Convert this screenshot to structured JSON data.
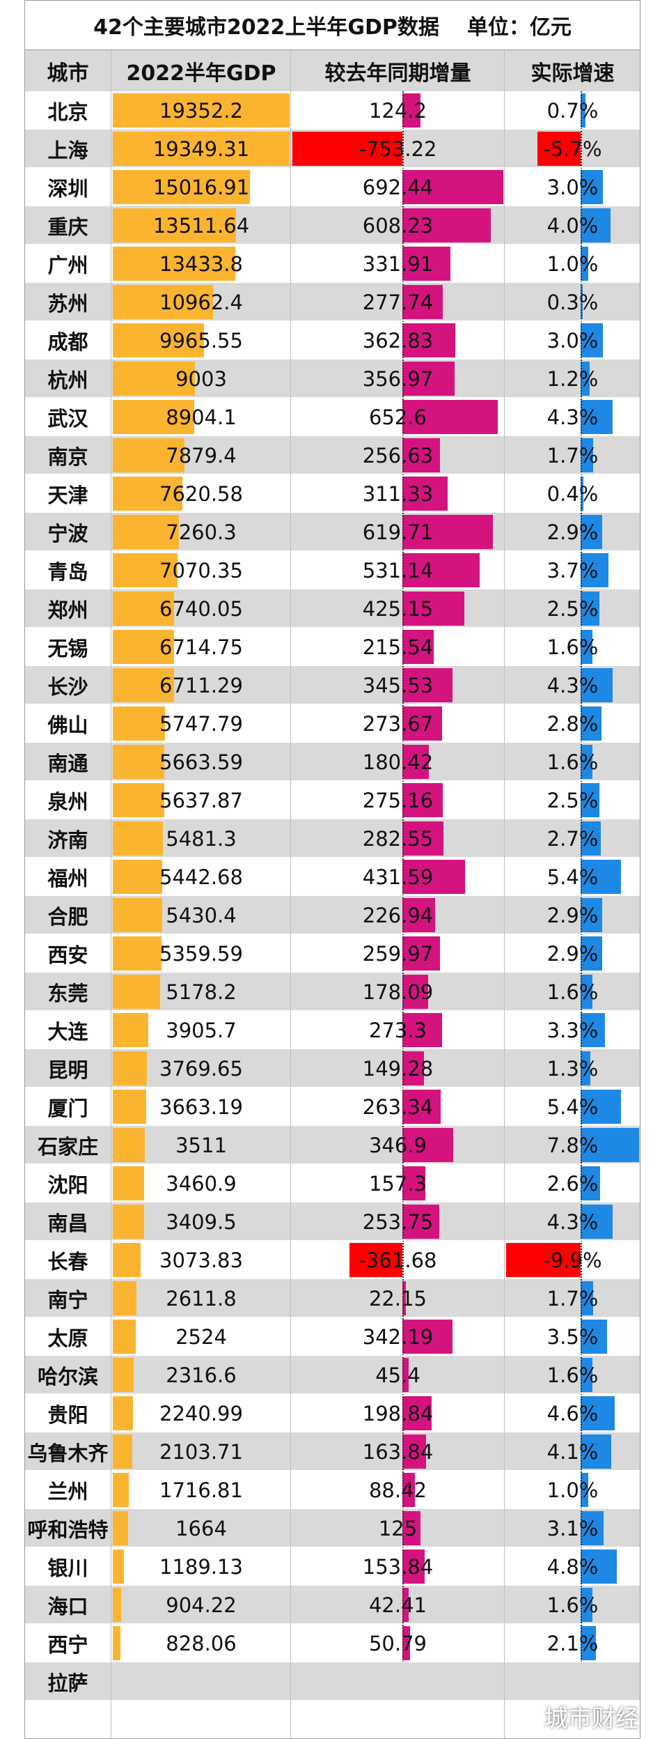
{
  "header": {
    "title": "42个主要城市2022上半年GDP数据",
    "unit": "单位：亿元"
  },
  "columns": [
    "城市",
    "2022半年GDP",
    "较去年同期增量",
    "实际增速"
  ],
  "rows": [
    {
      "city": "北京",
      "gdp": 19352.2,
      "increase": 124.2,
      "growth": 0.7,
      "growth_label": "0.7%"
    },
    {
      "city": "上海",
      "gdp": 19349.31,
      "increase": -753.22,
      "growth": -5.7,
      "growth_label": "-5.7%"
    },
    {
      "city": "深圳",
      "gdp": 15016.91,
      "increase": 692.44,
      "growth": 3.0,
      "growth_label": "3.0%"
    },
    {
      "city": "重庆",
      "gdp": 13511.64,
      "increase": 608.23,
      "growth": 4.0,
      "growth_label": "4.0%"
    },
    {
      "city": "广州",
      "gdp": 13433.8,
      "increase": 331.91,
      "growth": 1.0,
      "growth_label": "1.0%"
    },
    {
      "city": "苏州",
      "gdp": 10962.4,
      "increase": 277.74,
      "growth": 0.3,
      "growth_label": "0.3%"
    },
    {
      "city": "成都",
      "gdp": 9965.55,
      "increase": 362.83,
      "growth": 3.0,
      "growth_label": "3.0%"
    },
    {
      "city": "杭州",
      "gdp": 9003,
      "increase": 356.97,
      "growth": 1.2,
      "growth_label": "1.2%"
    },
    {
      "city": "武汉",
      "gdp": 8904.1,
      "increase": 652.6,
      "growth": 4.3,
      "growth_label": "4.3%"
    },
    {
      "city": "南京",
      "gdp": 7879.4,
      "increase": 256.63,
      "growth": 1.7,
      "growth_label": "1.7%"
    },
    {
      "city": "天津",
      "gdp": 7620.58,
      "increase": 311.33,
      "growth": 0.4,
      "growth_label": "0.4%"
    },
    {
      "city": "宁波",
      "gdp": 7260.3,
      "increase": 619.71,
      "growth": 2.9,
      "growth_label": "2.9%"
    },
    {
      "city": "青岛",
      "gdp": 7070.35,
      "increase": 531.14,
      "growth": 3.7,
      "growth_label": "3.7%"
    },
    {
      "city": "郑州",
      "gdp": 6740.05,
      "increase": 425.15,
      "growth": 2.5,
      "growth_label": "2.5%"
    },
    {
      "city": "无锡",
      "gdp": 6714.75,
      "increase": 215.54,
      "growth": 1.6,
      "growth_label": "1.6%"
    },
    {
      "city": "长沙",
      "gdp": 6711.29,
      "increase": 345.53,
      "growth": 4.3,
      "growth_label": "4.3%"
    },
    {
      "city": "佛山",
      "gdp": 5747.79,
      "increase": 273.67,
      "growth": 2.8,
      "growth_label": "2.8%"
    },
    {
      "city": "南通",
      "gdp": 5663.59,
      "increase": 180.42,
      "growth": 1.6,
      "growth_label": "1.6%"
    },
    {
      "city": "泉州",
      "gdp": 5637.87,
      "increase": 275.16,
      "growth": 2.5,
      "growth_label": "2.5%"
    },
    {
      "city": "济南",
      "gdp": 5481.3,
      "increase": 282.55,
      "growth": 2.7,
      "growth_label": "2.7%"
    },
    {
      "city": "福州",
      "gdp": 5442.68,
      "increase": 431.59,
      "growth": 5.4,
      "growth_label": "5.4%"
    },
    {
      "city": "合肥",
      "gdp": 5430.4,
      "increase": 226.94,
      "growth": 2.9,
      "growth_label": "2.9%"
    },
    {
      "city": "西安",
      "gdp": 5359.59,
      "increase": 259.97,
      "growth": 2.9,
      "growth_label": "2.9%"
    },
    {
      "city": "东莞",
      "gdp": 5178.2,
      "increase": 178.09,
      "growth": 1.6,
      "growth_label": "1.6%"
    },
    {
      "city": "大连",
      "gdp": 3905.7,
      "increase": 273.3,
      "growth": 3.3,
      "growth_label": "3.3%"
    },
    {
      "city": "昆明",
      "gdp": 3769.65,
      "increase": 149.28,
      "growth": 1.3,
      "growth_label": "1.3%"
    },
    {
      "city": "厦门",
      "gdp": 3663.19,
      "increase": 263.34,
      "growth": 5.4,
      "growth_label": "5.4%"
    },
    {
      "city": "石家庄",
      "gdp": 3511,
      "increase": 346.9,
      "growth": 7.8,
      "growth_label": "7.8%"
    },
    {
      "city": "沈阳",
      "gdp": 3460.9,
      "increase": 157.3,
      "growth": 2.6,
      "growth_label": "2.6%"
    },
    {
      "city": "南昌",
      "gdp": 3409.5,
      "increase": 253.75,
      "growth": 4.3,
      "growth_label": "4.3%"
    },
    {
      "city": "长春",
      "gdp": 3073.83,
      "increase": -361.68,
      "growth": -9.9,
      "growth_label": "-9.9%"
    },
    {
      "city": "南宁",
      "gdp": 2611.8,
      "increase": 22.15,
      "growth": 1.7,
      "growth_label": "1.7%"
    },
    {
      "city": "太原",
      "gdp": 2524,
      "increase": 342.19,
      "growth": 3.5,
      "growth_label": "3.5%"
    },
    {
      "city": "哈尔滨",
      "gdp": 2316.6,
      "increase": 45.4,
      "growth": 1.6,
      "growth_label": "1.6%"
    },
    {
      "city": "贵阳",
      "gdp": 2240.99,
      "increase": 198.84,
      "growth": 4.6,
      "growth_label": "4.6%"
    },
    {
      "city": "乌鲁木齐",
      "gdp": 2103.71,
      "increase": 163.84,
      "growth": 4.1,
      "growth_label": "4.1%"
    },
    {
      "city": "兰州",
      "gdp": 1716.81,
      "increase": 88.42,
      "growth": 1.0,
      "growth_label": "1.0%"
    },
    {
      "city": "呼和浩特",
      "gdp": 1664,
      "increase": 125,
      "growth": 3.1,
      "growth_label": "3.1%"
    },
    {
      "city": "银川",
      "gdp": 1189.13,
      "increase": 153.84,
      "growth": 4.8,
      "growth_label": "4.8%"
    },
    {
      "city": "海口",
      "gdp": 904.22,
      "increase": 42.41,
      "growth": 1.6,
      "growth_label": "1.6%"
    },
    {
      "city": "西宁",
      "gdp": 828.06,
      "increase": 50.79,
      "growth": 2.1,
      "growth_label": "2.1%"
    },
    {
      "city": "拉萨",
      "gdp": null,
      "increase": null,
      "growth": null,
      "growth_label": null
    }
  ],
  "colors": {
    "gdp": "#fbb430",
    "increase": "#d4137f",
    "growth": "#1e88e5",
    "negative": "#ff0000"
  },
  "watermark": "城市财经"
}
